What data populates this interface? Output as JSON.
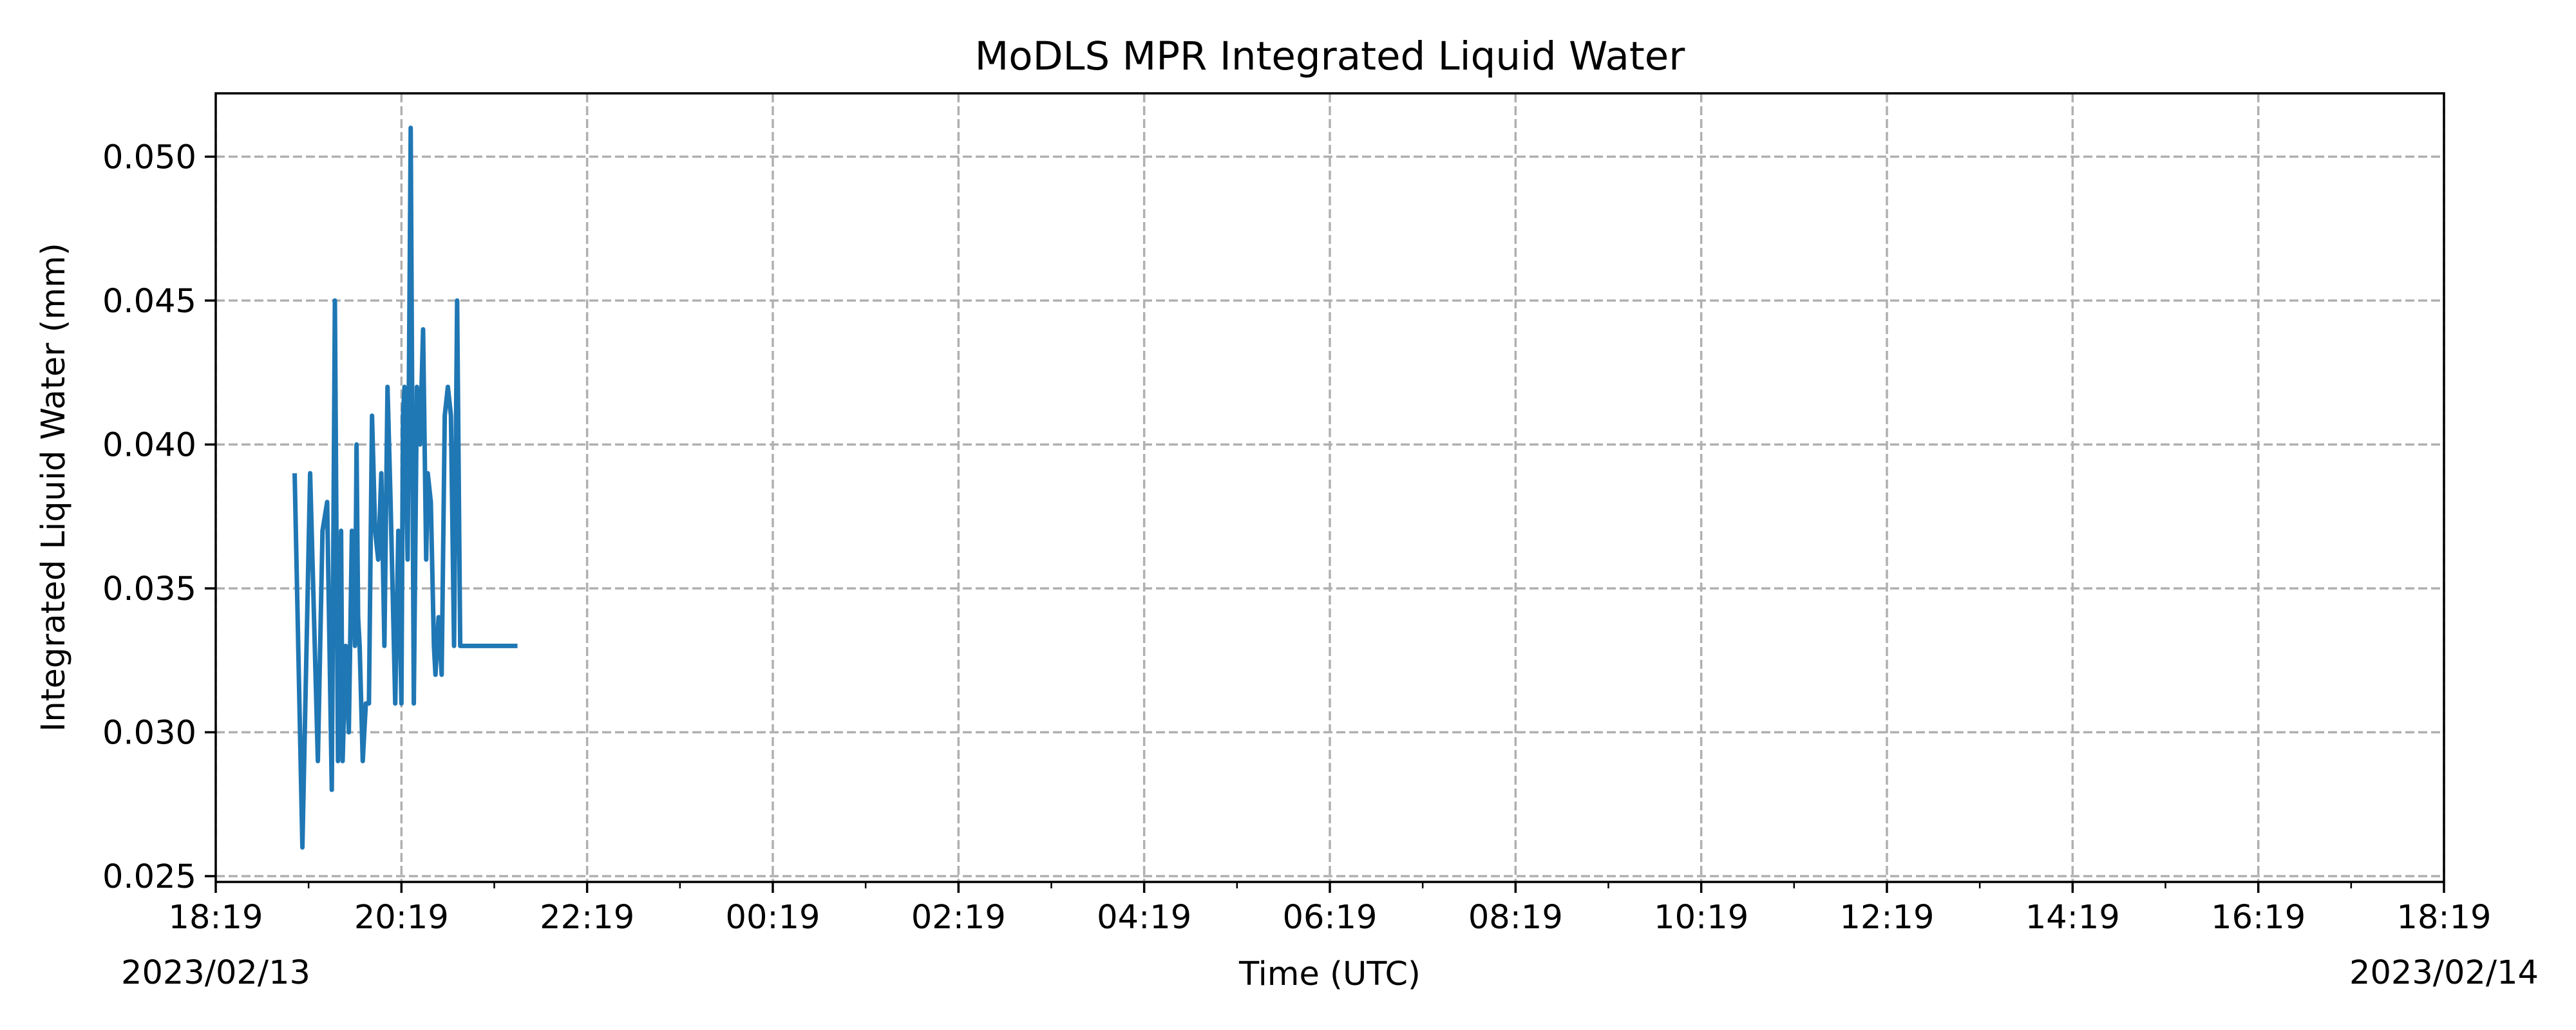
{
  "chart_data": {
    "type": "line",
    "title": "MoDLS MPR Integrated Liquid Water",
    "xlabel": "Time (UTC)",
    "ylabel": "Integrated Liquid Water (mm)",
    "xlim": [
      "2023-02-13 18:19",
      "2023-02-14 18:19"
    ],
    "ylim": [
      0.0248,
      0.0522
    ],
    "grid": true,
    "x_ticks": [
      {
        "time": "2023-02-13 18:19",
        "label": "18:19",
        "date_label": "2023/02/13"
      },
      {
        "time": "2023-02-13 20:19",
        "label": "20:19"
      },
      {
        "time": "2023-02-13 22:19",
        "label": "22:19"
      },
      {
        "time": "2023-02-14 00:19",
        "label": "00:19"
      },
      {
        "time": "2023-02-14 02:19",
        "label": "02:19"
      },
      {
        "time": "2023-02-14 04:19",
        "label": "04:19"
      },
      {
        "time": "2023-02-14 06:19",
        "label": "06:19"
      },
      {
        "time": "2023-02-14 08:19",
        "label": "08:19"
      },
      {
        "time": "2023-02-14 10:19",
        "label": "10:19"
      },
      {
        "time": "2023-02-14 12:19",
        "label": "12:19"
      },
      {
        "time": "2023-02-14 14:19",
        "label": "14:19"
      },
      {
        "time": "2023-02-14 16:19",
        "label": "16:19"
      },
      {
        "time": "2023-02-14 18:19",
        "label": "18:19",
        "date_label": "2023/02/14"
      }
    ],
    "y_ticks": [
      {
        "value": 0.025,
        "label": "0.025"
      },
      {
        "value": 0.03,
        "label": "0.030"
      },
      {
        "value": 0.035,
        "label": "0.035"
      },
      {
        "value": 0.04,
        "label": "0.040"
      },
      {
        "value": 0.045,
        "label": "0.045"
      },
      {
        "value": 0.05,
        "label": "0.050"
      }
    ],
    "series": [
      {
        "color": "#1f77b4",
        "x": [
          "2023-02-13 19:10",
          "2023-02-13 19:15",
          "2023-02-13 19:20",
          "2023-02-13 19:25",
          "2023-02-13 19:28",
          "2023-02-13 19:31",
          "2023-02-13 19:34",
          "2023-02-13 19:36",
          "2023-02-13 19:38",
          "2023-02-13 19:40",
          "2023-02-13 19:41",
          "2023-02-13 19:43",
          "2023-02-13 19:45",
          "2023-02-13 19:47",
          "2023-02-13 19:48",
          "2023-02-13 19:49",
          "2023-02-13 19:50",
          "2023-02-13 19:51",
          "2023-02-13 19:52",
          "2023-02-13 19:54",
          "2023-02-13 19:56",
          "2023-02-13 19:58",
          "2023-02-13 20:00",
          "2023-02-13 20:02",
          "2023-02-13 20:04",
          "2023-02-13 20:06",
          "2023-02-13 20:08",
          "2023-02-13 20:10",
          "2023-02-13 20:12",
          "2023-02-13 20:15",
          "2023-02-13 20:17",
          "2023-02-13 20:19",
          "2023-02-13 20:20",
          "2023-02-13 20:21",
          "2023-02-13 20:23",
          "2023-02-13 20:25",
          "2023-02-13 20:27",
          "2023-02-13 20:29",
          "2023-02-13 20:31",
          "2023-02-13 20:33",
          "2023-02-13 20:35",
          "2023-02-13 20:36",
          "2023-02-13 20:38",
          "2023-02-13 20:40",
          "2023-02-13 20:41",
          "2023-02-13 20:43",
          "2023-02-13 20:45",
          "2023-02-13 20:47",
          "2023-02-13 20:49",
          "2023-02-13 20:51",
          "2023-02-13 20:53",
          "2023-02-13 20:55",
          "2023-02-13 20:57",
          "2023-02-13 20:58",
          "2023-02-13 21:00",
          "2023-02-13 21:02",
          "2023-02-13 21:03",
          "2023-02-13 21:05",
          "2023-02-13 21:06",
          "2023-02-13 21:07",
          "2023-02-13 21:08",
          "2023-02-13 21:10",
          "2023-02-13 21:12",
          "2023-02-13 21:14",
          "2023-02-13 21:16",
          "2023-02-13 21:18",
          "2023-02-13 21:19",
          "2023-02-13 21:21",
          "2023-02-13 21:22",
          "2023-02-13 21:23",
          "2023-02-13 21:25",
          "2023-02-13 21:27",
          "2023-02-13 21:29",
          "2023-02-13 21:30",
          "2023-02-13 21:31",
          "2023-02-13 21:32",
          "2023-02-13 21:33",
          "2023-02-13 21:34"
        ],
        "y": [
          0.039,
          0.026,
          0.039,
          0.029,
          0.037,
          0.038,
          0.028,
          0.045,
          0.029,
          0.037,
          0.029,
          0.033,
          0.03,
          0.037,
          0.035,
          0.033,
          0.04,
          0.034,
          0.033,
          0.029,
          0.031,
          0.031,
          0.041,
          0.037,
          0.036,
          0.039,
          0.033,
          0.042,
          0.038,
          0.031,
          0.037,
          0.031,
          0.041,
          0.042,
          0.036,
          0.051,
          0.031,
          0.042,
          0.04,
          0.044,
          0.036,
          0.039,
          0.038,
          0.033,
          0.032,
          0.034,
          0.032,
          0.041,
          0.042,
          0.041,
          0.033,
          0.045,
          0.033,
          0.033,
          0.033,
          0.033,
          0.033,
          0.033,
          0.033,
          0.033,
          0.033,
          0.033,
          0.033,
          0.033,
          0.033,
          0.033,
          0.033,
          0.033,
          0.033,
          0.033,
          0.033,
          0.033,
          0.033,
          0.033,
          0.033,
          0.033,
          0.033,
          0.033
        ]
      }
    ]
  }
}
